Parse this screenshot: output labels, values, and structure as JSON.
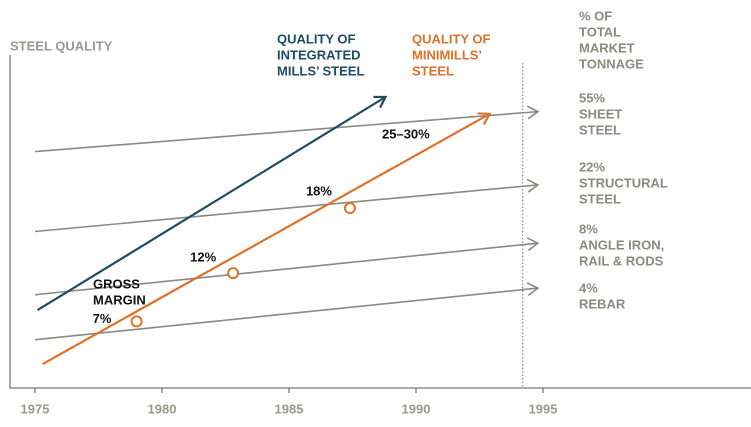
{
  "chart_data": {
    "type": "line",
    "ylabel": "STEEL QUALITY",
    "legend_title": [
      "% OF",
      "TOTAL",
      "MARKET",
      "TONNAGE"
    ],
    "xlim": [
      1974,
      2003
    ],
    "xticks": [
      1975,
      1980,
      1985,
      1990,
      1995
    ],
    "ylim": [
      0,
      100
    ],
    "marker_x": 1994.2,
    "tiers": [
      {
        "share_label": "55%",
        "name": [
          "SHEET",
          "STEEL"
        ],
        "color": "#8a8a80",
        "x": [
          1975,
          1994.8
        ],
        "y": [
          71,
          83
        ]
      },
      {
        "share_label": "22%",
        "name": [
          "STRUCTURAL",
          "STEEL"
        ],
        "color": "#8a8a80",
        "x": [
          1975,
          1994.8
        ],
        "y": [
          47,
          61
        ]
      },
      {
        "share_label": "8%",
        "name": [
          "ANGLE IRON,",
          "RAIL & RODS"
        ],
        "color": "#8a8a80",
        "x": [
          1975,
          1994.8
        ],
        "y": [
          28,
          43.5
        ]
      },
      {
        "share_label": "4%",
        "name": [
          "REBAR"
        ],
        "color": "#8a8a80",
        "x": [
          1975,
          1994.8
        ],
        "y": [
          14.5,
          30
        ]
      }
    ],
    "series": [
      {
        "name": [
          "QUALITY OF",
          "INTEGRATED",
          "MILLS’ STEEL"
        ],
        "color": "#1e4d63",
        "x": [
          1975.1,
          1988.8
        ],
        "y": [
          23.4,
          87.4
        ]
      },
      {
        "name": [
          "QUALITY OF",
          "MINIMILLS’",
          "STEEL"
        ],
        "color": "#e0702a",
        "x": [
          1975.3,
          1992.9
        ],
        "y": [
          7.2,
          82.3
        ]
      }
    ],
    "margin_note": [
      "GROSS",
      "MARGIN"
    ],
    "points": [
      {
        "x": 1979,
        "y": 20,
        "label": "7%"
      },
      {
        "x": 1982.8,
        "y": 34.5,
        "label": "12%"
      },
      {
        "x": 1987.4,
        "y": 54,
        "label": "18%"
      }
    ],
    "end_label": "25–30%"
  }
}
